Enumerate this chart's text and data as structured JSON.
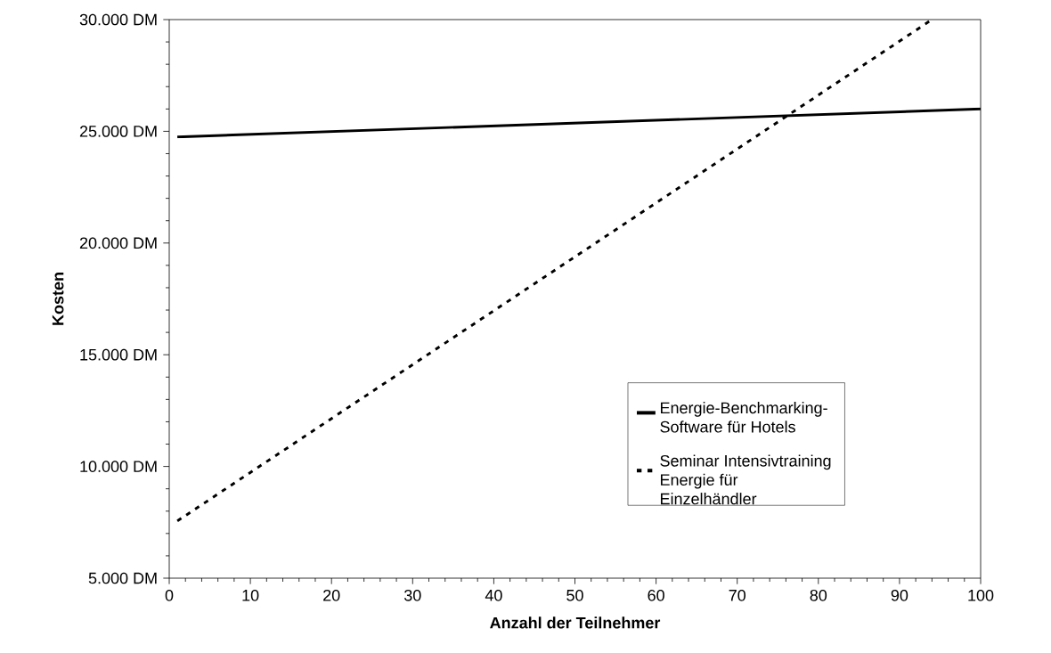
{
  "chart_data": {
    "type": "line",
    "xlabel": "Anzahl der Teilnehmer",
    "ylabel": "Kosten",
    "series": [
      {
        "name": "Energie-Benchmarking-Software für Hotels",
        "color": "#000000",
        "line_style": "solid",
        "x": [
          1,
          100
        ],
        "values": [
          24750,
          26000
        ]
      },
      {
        "name": "Seminar Intensivtraining Energie für Einzelhändler",
        "color": "#000000",
        "line_style": "dashed",
        "x": [
          1,
          94
        ],
        "values": [
          7560,
          30000
        ]
      }
    ],
    "xlim": [
      0,
      100
    ],
    "xticks": [
      0,
      10,
      20,
      30,
      40,
      50,
      60,
      70,
      80,
      90,
      100
    ],
    "ylim": [
      5000,
      30000
    ],
    "yticks": [
      {
        "value": 5000,
        "label": "5.000 DM"
      },
      {
        "value": 10000,
        "label": "10.000 DM"
      },
      {
        "value": 15000,
        "label": "15.000 DM"
      },
      {
        "value": 20000,
        "label": "20.000 DM"
      },
      {
        "value": 25000,
        "label": "25.000 DM"
      },
      {
        "value": 30000,
        "label": "30.000 DM"
      }
    ],
    "grid": false,
    "legend": "bottom right"
  }
}
